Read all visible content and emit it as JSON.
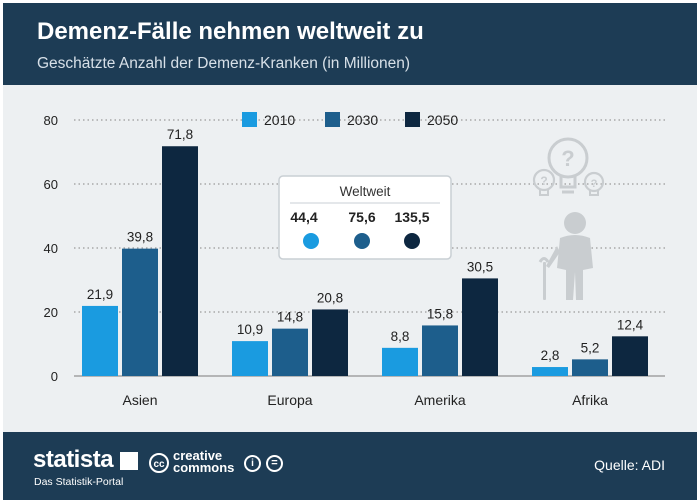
{
  "header": {
    "title": "Demenz-Fälle nehmen weltweit zu",
    "subtitle": "Geschätzte Anzahl der Demenz-Kranken (in Millionen)"
  },
  "footer": {
    "logo": "statista",
    "logo_sub": "Das Statistik-Portal",
    "cc_line1": "creative",
    "cc_line2": "commons",
    "cc_badge": "cc",
    "source": "Quelle: ADI"
  },
  "colors": {
    "2010": "#1a9be0",
    "2030": "#1d5e8c",
    "2050": "#0d2740",
    "header": "#1d3c55",
    "background": "#edf0f2"
  },
  "worldwide": {
    "title": "Weltweit",
    "values": [
      "44,4",
      "75,6",
      "135,5"
    ]
  },
  "icons": [
    "thinking-elderly-person-icon",
    "question-bulb-icon"
  ],
  "chart_data": {
    "type": "bar",
    "title": "Demenz-Fälle nehmen weltweit zu",
    "subtitle": "Geschätzte Anzahl der Demenz-Kranken (in Millionen)",
    "categories": [
      "Asien",
      "Europa",
      "Amerika",
      "Afrika"
    ],
    "series": [
      {
        "name": "2010",
        "values": [
          21.9,
          10.9,
          8.8,
          2.8
        ],
        "labels": [
          "21,9",
          "10,9",
          "8,8",
          "2,8"
        ]
      },
      {
        "name": "2030",
        "values": [
          39.8,
          14.8,
          15.8,
          5.2
        ],
        "labels": [
          "39,8",
          "14,8",
          "15,8",
          "5,2"
        ]
      },
      {
        "name": "2050",
        "values": [
          71.8,
          20.8,
          30.5,
          12.4
        ],
        "labels": [
          "71,8",
          "20,8",
          "30,5",
          "12,4"
        ]
      }
    ],
    "yticks": [
      0,
      20,
      40,
      60,
      80
    ],
    "ylim": [
      0,
      80
    ],
    "grid": true,
    "legend": "top-center"
  }
}
